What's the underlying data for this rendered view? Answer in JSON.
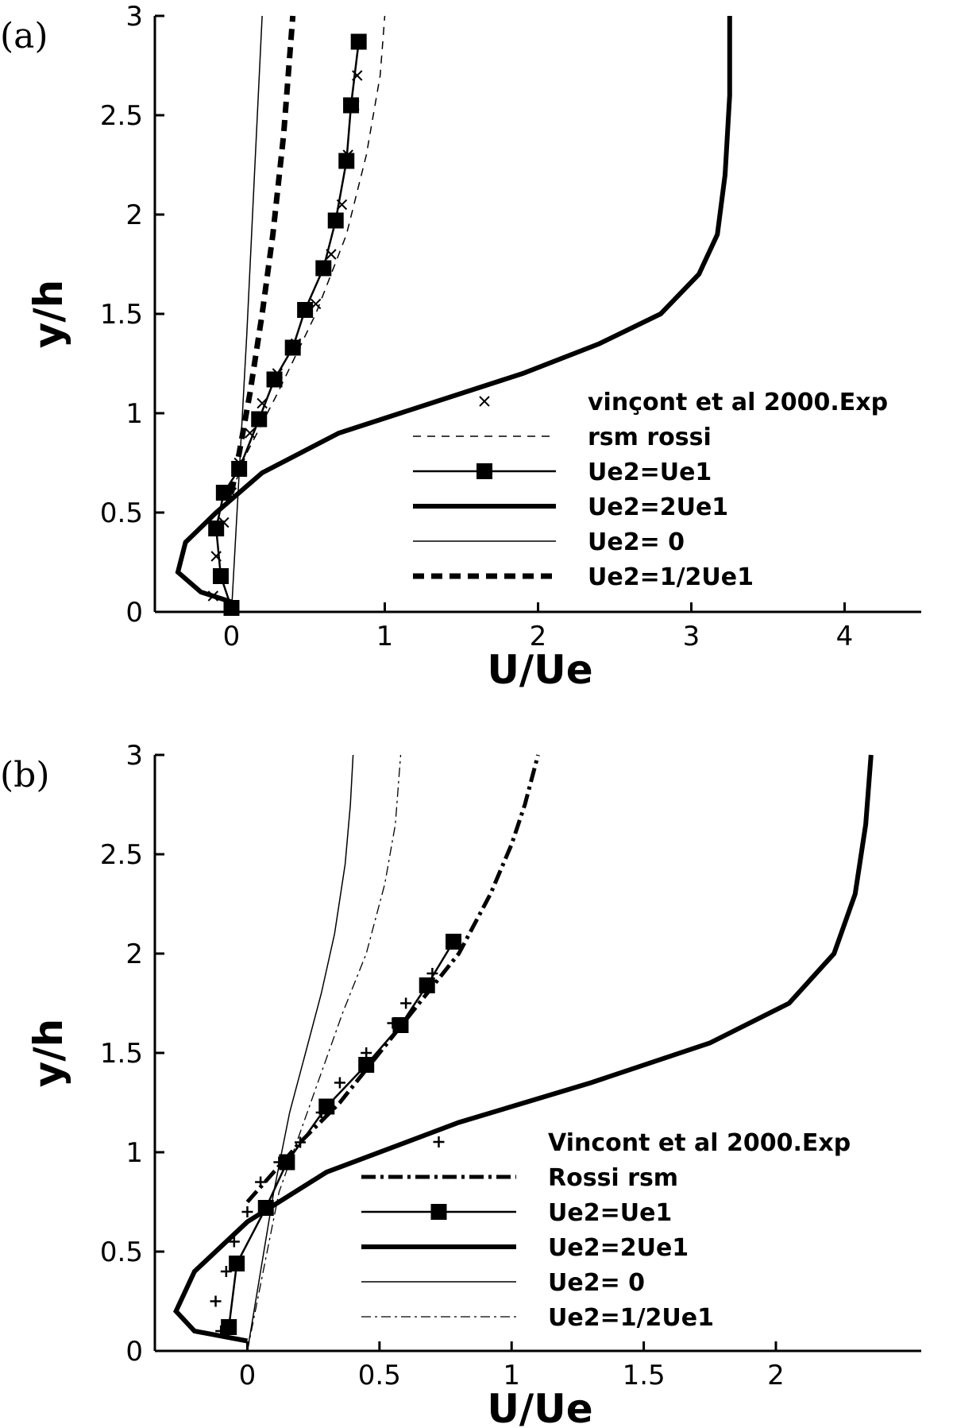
{
  "chart_data": [
    {
      "type": "line",
      "panel_label": "(a)",
      "xlabel": "U/Ue",
      "ylabel": "y/h",
      "xlim": [
        -0.5,
        4.5
      ],
      "ylim": [
        0,
        3
      ],
      "xticks": [
        "0",
        "1",
        "2",
        "3",
        "4"
      ],
      "yticks": [
        "0",
        "0.5",
        "1",
        "1.5",
        "2",
        "2.5",
        "3"
      ],
      "grid": false,
      "legend_position": "right",
      "series": [
        {
          "name": "vinçont et al 2000.Exp",
          "style": "marker-x",
          "x": [
            -0.12,
            -0.1,
            -0.05,
            0.0,
            0.05,
            0.12,
            0.2,
            0.3,
            0.42,
            0.55,
            0.65,
            0.72,
            0.76,
            0.8,
            0.82
          ],
          "y": [
            0.08,
            0.28,
            0.45,
            0.6,
            0.75,
            0.9,
            1.05,
            1.2,
            1.35,
            1.55,
            1.8,
            2.05,
            2.3,
            2.55,
            2.7
          ]
        },
        {
          "name": "rsm rossi",
          "style": "thin-dashed",
          "x": [
            0.0,
            0.1,
            0.3,
            0.55,
            0.75,
            0.88,
            0.97,
            1.0
          ],
          "y": [
            0.6,
            0.8,
            1.1,
            1.5,
            1.9,
            2.3,
            2.7,
            3.0
          ]
        },
        {
          "name": "Ue2=Ue1",
          "style": "square-marker-line",
          "x": [
            0.0,
            -0.07,
            -0.1,
            -0.05,
            0.05,
            0.18,
            0.28,
            0.4,
            0.48,
            0.6,
            0.68,
            0.75,
            0.78,
            0.83
          ],
          "y": [
            0.02,
            0.18,
            0.42,
            0.6,
            0.72,
            0.97,
            1.17,
            1.33,
            1.52,
            1.73,
            1.97,
            2.27,
            2.55,
            2.87
          ]
        },
        {
          "name": "Ue2=2Ue1",
          "style": "thick-solid",
          "x": [
            0.0,
            -0.2,
            -0.35,
            -0.3,
            -0.1,
            0.2,
            0.7,
            1.3,
            1.9,
            2.4,
            2.8,
            3.05,
            3.17,
            3.22,
            3.25,
            3.25
          ],
          "y": [
            0.05,
            0.1,
            0.2,
            0.35,
            0.5,
            0.7,
            0.9,
            1.05,
            1.2,
            1.35,
            1.5,
            1.7,
            1.9,
            2.2,
            2.6,
            3.0
          ]
        },
        {
          "name": "Ue2= 0",
          "style": "thin-solid",
          "x": [
            0.0,
            0.05,
            0.1,
            0.15,
            0.2
          ],
          "y": [
            0.0,
            0.7,
            1.4,
            2.2,
            3.0
          ]
        },
        {
          "name": "Ue2=1/2Ue1",
          "style": "thick-dashed",
          "x": [
            0.0,
            0.05,
            0.12,
            0.2,
            0.27,
            0.34,
            0.4
          ],
          "y": [
            0.6,
            0.8,
            1.1,
            1.5,
            1.9,
            2.4,
            3.0
          ]
        }
      ]
    },
    {
      "type": "line",
      "panel_label": "(b)",
      "xlabel": "U/Ue",
      "ylabel": "y/h",
      "xlim": [
        -0.35,
        2.55
      ],
      "ylim": [
        0,
        3
      ],
      "xticks": [
        "0",
        "0.5",
        "1",
        "1.5",
        "2"
      ],
      "yticks": [
        "0",
        "0.5",
        "1",
        "1.5",
        "2",
        "2.5",
        "3"
      ],
      "grid": false,
      "legend_position": "right",
      "series": [
        {
          "name": "Vincont et al 2000.Exp",
          "style": "marker-plus",
          "x": [
            -0.1,
            -0.12,
            -0.08,
            -0.05,
            0.0,
            0.05,
            0.12,
            0.2,
            0.28,
            0.35,
            0.45,
            0.55,
            0.6,
            0.7
          ],
          "y": [
            0.1,
            0.25,
            0.4,
            0.55,
            0.7,
            0.85,
            0.95,
            1.05,
            1.2,
            1.35,
            1.5,
            1.65,
            1.75,
            1.9
          ]
        },
        {
          "name": "Rossi rsm",
          "style": "dash-dot-thick",
          "x": [
            0.0,
            0.1,
            0.2,
            0.35,
            0.5,
            0.65,
            0.8,
            0.92,
            1.0,
            1.05,
            1.1
          ],
          "y": [
            0.75,
            0.9,
            1.05,
            1.25,
            1.5,
            1.75,
            2.0,
            2.3,
            2.55,
            2.75,
            3.0
          ]
        },
        {
          "name": "Ue2=Ue1",
          "style": "square-marker-line",
          "x": [
            -0.07,
            -0.04,
            0.07,
            0.15,
            0.3,
            0.45,
            0.58,
            0.68,
            0.78
          ],
          "y": [
            0.12,
            0.44,
            0.72,
            0.95,
            1.23,
            1.44,
            1.64,
            1.84,
            2.06
          ]
        },
        {
          "name": "Ue2=2Ue1",
          "style": "thick-solid",
          "x": [
            0.0,
            -0.2,
            -0.27,
            -0.2,
            0.0,
            0.3,
            0.8,
            1.3,
            1.75,
            2.05,
            2.22,
            2.3,
            2.34,
            2.36
          ],
          "y": [
            0.05,
            0.1,
            0.2,
            0.4,
            0.65,
            0.9,
            1.15,
            1.35,
            1.55,
            1.75,
            2.0,
            2.3,
            2.65,
            3.0
          ]
        },
        {
          "name": "Ue2= 0",
          "style": "thin-solid",
          "x": [
            0.0,
            0.05,
            0.1,
            0.16,
            0.22,
            0.28,
            0.33,
            0.37,
            0.39,
            0.4
          ],
          "y": [
            0.0,
            0.4,
            0.8,
            1.2,
            1.5,
            1.8,
            2.1,
            2.45,
            2.75,
            3.0
          ]
        },
        {
          "name": "Ue2=1/2Ue1",
          "style": "thin-dash-dot",
          "x": [
            0.0,
            0.06,
            0.12,
            0.2,
            0.28,
            0.36,
            0.45,
            0.52,
            0.56,
            0.58
          ],
          "y": [
            0.0,
            0.4,
            0.8,
            1.1,
            1.4,
            1.7,
            2.0,
            2.35,
            2.65,
            3.0
          ]
        }
      ]
    }
  ]
}
